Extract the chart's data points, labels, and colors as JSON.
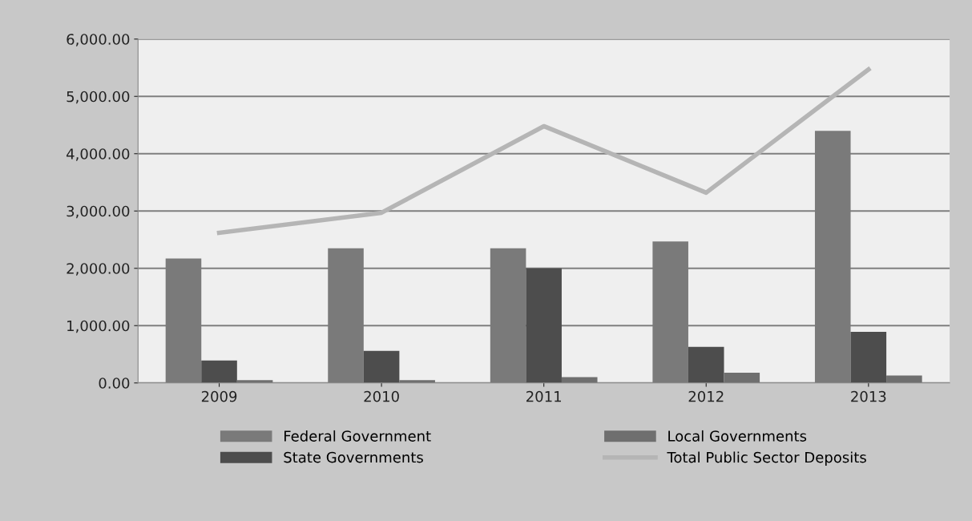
{
  "chart_data": {
    "type": "bar",
    "categories": [
      "2009",
      "2010",
      "2011",
      "2012",
      "2013"
    ],
    "series": [
      {
        "name": "Federal Government",
        "color": "#7a7a7a",
        "values": [
          2170,
          2350,
          2350,
          2470,
          4400
        ]
      },
      {
        "name": "State Governments",
        "color": "#4d4d4d",
        "values": [
          390,
          560,
          2000,
          630,
          890
        ]
      },
      {
        "name": "Local Governments",
        "color": "#6f6f6f",
        "values": [
          50,
          50,
          100,
          180,
          130
        ]
      },
      {
        "name": "Total Public Sector Deposits",
        "type": "line",
        "color": "#b5b5b5",
        "values": [
          2620,
          2970,
          4480,
          3320,
          5470
        ]
      }
    ],
    "ylim": [
      0,
      6000
    ],
    "yticks": [
      {
        "value": 0,
        "label": "0.00"
      },
      {
        "value": 1000,
        "label": "1,000.00"
      },
      {
        "value": 2000,
        "label": "2,000.00"
      },
      {
        "value": 3000,
        "label": "3,000.00"
      },
      {
        "value": 4000,
        "label": "4,000.00"
      },
      {
        "value": 5000,
        "label": "5,000.00"
      },
      {
        "value": 6000,
        "label": "6,000.00"
      }
    ],
    "grid": "y",
    "legend": "bottom",
    "marker": "none",
    "line_style": "solid"
  }
}
